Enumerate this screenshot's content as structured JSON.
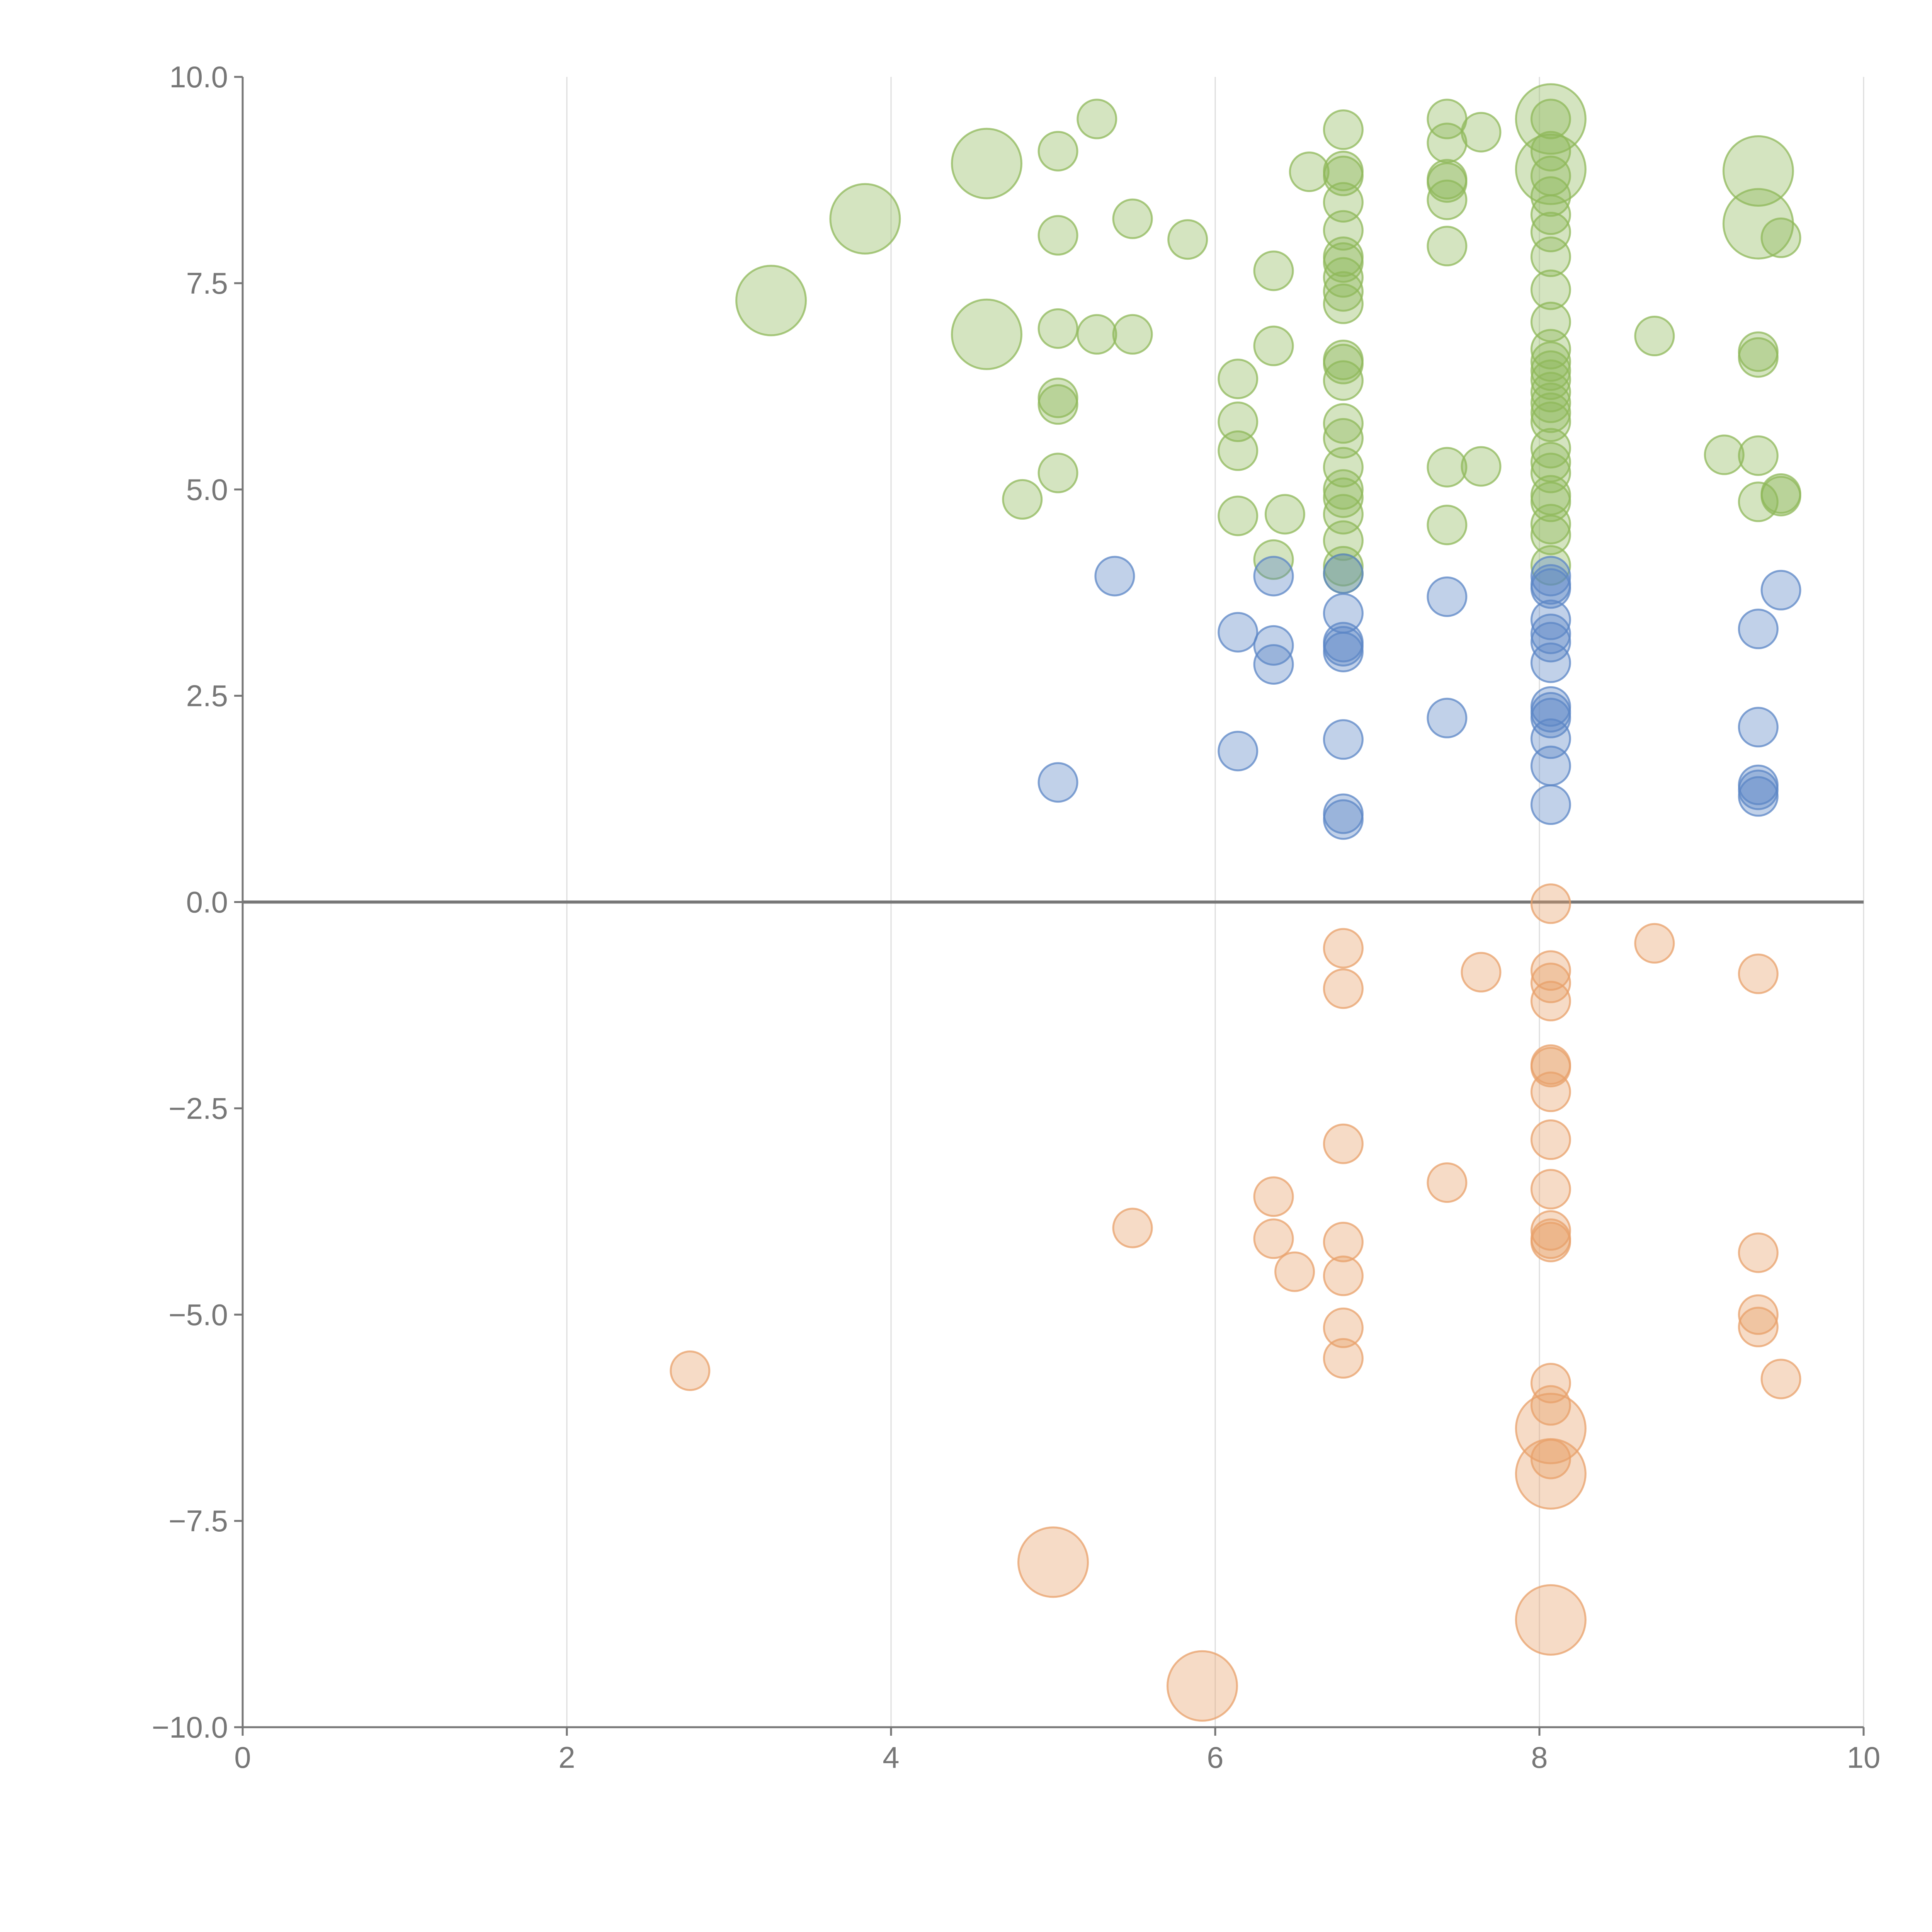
{
  "chart_data": {
    "type": "scatter",
    "variant": "bubble",
    "title": "",
    "xlabel": "",
    "ylabel": "",
    "xlim": [
      0,
      10
    ],
    "ylim": [
      -10,
      10
    ],
    "x_ticks": [
      "0",
      "2",
      "4",
      "6",
      "8",
      "10"
    ],
    "y_ticks": [
      "10.0",
      "7.5",
      "5.0",
      "2.5",
      "0.0",
      "−2.5",
      "−5.0",
      "−7.5",
      "−10.0"
    ],
    "x_tick_values": [
      0,
      2,
      4,
      6,
      8,
      10
    ],
    "y_tick_values": [
      10,
      7.5,
      5,
      2.5,
      0,
      -2.5,
      -5,
      -7.5,
      -10
    ],
    "vertical_grid": true,
    "zero_line": true,
    "colors": {
      "green": "#8fb85a",
      "blue": "#5b86c6",
      "orange": "#e8a06a",
      "axis": "#777777",
      "grid": "#dddddd",
      "label": "#ffffff"
    },
    "series": [
      {
        "name": "green",
        "points": [
          [
            3.26,
            7.29,
            3
          ],
          [
            3.84,
            8.28,
            3
          ],
          [
            4.59,
            8.95,
            3
          ],
          [
            4.59,
            6.88,
            3
          ],
          [
            8.07,
            9.49,
            3
          ],
          [
            8.07,
            8.88,
            3
          ],
          [
            9.35,
            8.86,
            3
          ],
          [
            9.35,
            8.22,
            3
          ],
          [
            5.27,
            9.49,
            1
          ],
          [
            5.03,
            9.1,
            1
          ],
          [
            5.03,
            8.08,
            1
          ],
          [
            5.49,
            8.28,
            1
          ],
          [
            5.83,
            8.03,
            1
          ],
          [
            5.03,
            6.95,
            1
          ],
          [
            5.27,
            6.88,
            1
          ],
          [
            5.49,
            6.88,
            1
          ],
          [
            5.03,
            6.11,
            1
          ],
          [
            5.03,
            6.03,
            1
          ],
          [
            5.03,
            5.2,
            1
          ],
          [
            4.81,
            4.88,
            1
          ],
          [
            6.14,
            6.34,
            1
          ],
          [
            6.14,
            5.82,
            1
          ],
          [
            6.14,
            5.47,
            1
          ],
          [
            6.14,
            4.68,
            1
          ],
          [
            6.36,
            7.65,
            1
          ],
          [
            6.36,
            6.74,
            1
          ],
          [
            6.36,
            4.15,
            1
          ],
          [
            6.43,
            4.7,
            1
          ],
          [
            6.58,
            8.85,
            1
          ],
          [
            6.79,
            9.36,
            1
          ],
          [
            6.79,
            8.86,
            1
          ],
          [
            6.79,
            8.8,
            1
          ],
          [
            6.79,
            8.48,
            1
          ],
          [
            6.79,
            8.14,
            1
          ],
          [
            6.79,
            7.82,
            1
          ],
          [
            6.79,
            7.75,
            1
          ],
          [
            6.79,
            7.57,
            1
          ],
          [
            6.79,
            7.4,
            1
          ],
          [
            6.79,
            7.25,
            1
          ],
          [
            6.79,
            6.57,
            1
          ],
          [
            6.79,
            6.52,
            1
          ],
          [
            6.79,
            6.32,
            1
          ],
          [
            6.79,
            5.8,
            1
          ],
          [
            6.79,
            5.62,
            1
          ],
          [
            6.79,
            5.27,
            1
          ],
          [
            6.79,
            5.0,
            1
          ],
          [
            6.79,
            4.9,
            1
          ],
          [
            6.79,
            4.7,
            1
          ],
          [
            6.79,
            4.38,
            1
          ],
          [
            6.79,
            4.07,
            1
          ],
          [
            6.79,
            3.98,
            1
          ],
          [
            7.43,
            9.49,
            1
          ],
          [
            7.43,
            9.2,
            1
          ],
          [
            7.43,
            8.76,
            1
          ],
          [
            7.43,
            8.72,
            1
          ],
          [
            7.43,
            8.51,
            1
          ],
          [
            7.43,
            7.95,
            1
          ],
          [
            7.43,
            5.27,
            1
          ],
          [
            7.43,
            4.57,
            1
          ],
          [
            7.64,
            9.33,
            1
          ],
          [
            7.64,
            5.28,
            1
          ],
          [
            8.07,
            9.49,
            1
          ],
          [
            8.07,
            9.1,
            1
          ],
          [
            8.07,
            8.8,
            1
          ],
          [
            8.07,
            8.55,
            1
          ],
          [
            8.07,
            8.33,
            1
          ],
          [
            8.07,
            8.12,
            1
          ],
          [
            8.07,
            7.82,
            1
          ],
          [
            8.07,
            7.42,
            1
          ],
          [
            8.07,
            7.03,
            1
          ],
          [
            8.07,
            6.7,
            1
          ],
          [
            8.07,
            6.55,
            1
          ],
          [
            8.07,
            6.44,
            1
          ],
          [
            8.07,
            6.33,
            1
          ],
          [
            8.07,
            6.18,
            1
          ],
          [
            8.07,
            6.05,
            1
          ],
          [
            8.07,
            5.93,
            1
          ],
          [
            8.07,
            5.82,
            1
          ],
          [
            8.07,
            5.5,
            1
          ],
          [
            8.07,
            5.33,
            1
          ],
          [
            8.07,
            5.2,
            1
          ],
          [
            8.07,
            4.93,
            1
          ],
          [
            8.07,
            4.85,
            1
          ],
          [
            8.07,
            4.58,
            1
          ],
          [
            8.07,
            4.45,
            1
          ],
          [
            8.07,
            4.08,
            1
          ],
          [
            8.71,
            6.86,
            1
          ],
          [
            9.14,
            5.42,
            1
          ],
          [
            9.35,
            6.67,
            1
          ],
          [
            9.35,
            6.6,
            1
          ],
          [
            9.35,
            5.41,
            1
          ],
          [
            9.35,
            4.85,
            1
          ],
          [
            9.49,
            4.92,
            1
          ],
          [
            9.49,
            4.95,
            1
          ],
          [
            9.49,
            8.05,
            1
          ]
        ]
      },
      {
        "name": "blue",
        "points": [
          [
            5.03,
            1.45,
            1
          ],
          [
            5.38,
            3.95,
            1
          ],
          [
            6.14,
            3.27,
            1
          ],
          [
            6.14,
            1.83,
            1
          ],
          [
            6.36,
            3.95,
            1
          ],
          [
            6.36,
            3.11,
            1
          ],
          [
            6.36,
            2.88,
            1
          ],
          [
            6.79,
            3.98,
            1
          ],
          [
            6.79,
            3.5,
            1
          ],
          [
            6.79,
            3.15,
            1
          ],
          [
            6.79,
            3.1,
            1
          ],
          [
            6.79,
            3.03,
            1
          ],
          [
            6.79,
            1.97,
            1
          ],
          [
            6.79,
            1.07,
            1
          ],
          [
            6.79,
            1.0,
            1
          ],
          [
            7.43,
            3.7,
            1
          ],
          [
            7.43,
            2.23,
            1
          ],
          [
            8.07,
            3.95,
            1
          ],
          [
            8.07,
            3.85,
            1
          ],
          [
            8.07,
            3.8,
            1
          ],
          [
            8.07,
            3.42,
            1
          ],
          [
            8.07,
            3.25,
            1
          ],
          [
            8.07,
            3.15,
            1
          ],
          [
            8.07,
            2.9,
            1
          ],
          [
            8.07,
            2.37,
            1
          ],
          [
            8.07,
            2.3,
            1
          ],
          [
            8.07,
            2.23,
            1
          ],
          [
            8.07,
            1.98,
            1
          ],
          [
            8.07,
            1.65,
            1
          ],
          [
            8.07,
            1.18,
            1
          ],
          [
            9.35,
            3.31,
            1
          ],
          [
            9.35,
            2.12,
            1
          ],
          [
            9.35,
            1.42,
            1
          ],
          [
            9.35,
            1.36,
            1
          ],
          [
            9.35,
            1.28,
            1
          ],
          [
            9.49,
            3.78,
            1
          ]
        ]
      },
      {
        "name": "orange",
        "points": [
          [
            8.07,
            -6.38,
            3
          ],
          [
            8.07,
            -6.93,
            3
          ],
          [
            5.0,
            -8.0,
            3
          ],
          [
            8.07,
            -8.7,
            3
          ],
          [
            5.92,
            -9.5,
            3
          ],
          [
            2.76,
            -5.68,
            1
          ],
          [
            5.49,
            -3.95,
            1
          ],
          [
            6.36,
            -3.57,
            1
          ],
          [
            6.36,
            -4.08,
            1
          ],
          [
            6.49,
            -4.48,
            1
          ],
          [
            6.79,
            -0.56,
            1
          ],
          [
            6.79,
            -1.05,
            1
          ],
          [
            6.79,
            -2.93,
            1
          ],
          [
            6.79,
            -4.12,
            1
          ],
          [
            6.79,
            -4.53,
            1
          ],
          [
            6.79,
            -5.16,
            1
          ],
          [
            6.79,
            -5.53,
            1
          ],
          [
            7.43,
            -3.4,
            1
          ],
          [
            7.64,
            -0.85,
            1
          ],
          [
            8.07,
            -0.02,
            1
          ],
          [
            8.07,
            -0.83,
            1
          ],
          [
            8.07,
            -0.98,
            1
          ],
          [
            8.07,
            -1.2,
            1
          ],
          [
            8.07,
            -1.97,
            1
          ],
          [
            8.07,
            -2.0,
            1
          ],
          [
            8.07,
            -2.3,
            1
          ],
          [
            8.07,
            -2.88,
            1
          ],
          [
            8.07,
            -3.48,
            1
          ],
          [
            8.07,
            -3.98,
            1
          ],
          [
            8.07,
            -4.08,
            1
          ],
          [
            8.07,
            -4.12,
            1
          ],
          [
            8.07,
            -5.83,
            1
          ],
          [
            8.07,
            -6.1,
            1
          ],
          [
            8.07,
            -6.75,
            1
          ],
          [
            8.71,
            -0.5,
            1
          ],
          [
            9.35,
            -0.87,
            1
          ],
          [
            9.35,
            -4.25,
            1
          ],
          [
            9.35,
            -5.0,
            1
          ],
          [
            9.35,
            -5.15,
            1
          ],
          [
            9.49,
            -5.78,
            1
          ]
        ]
      }
    ]
  }
}
